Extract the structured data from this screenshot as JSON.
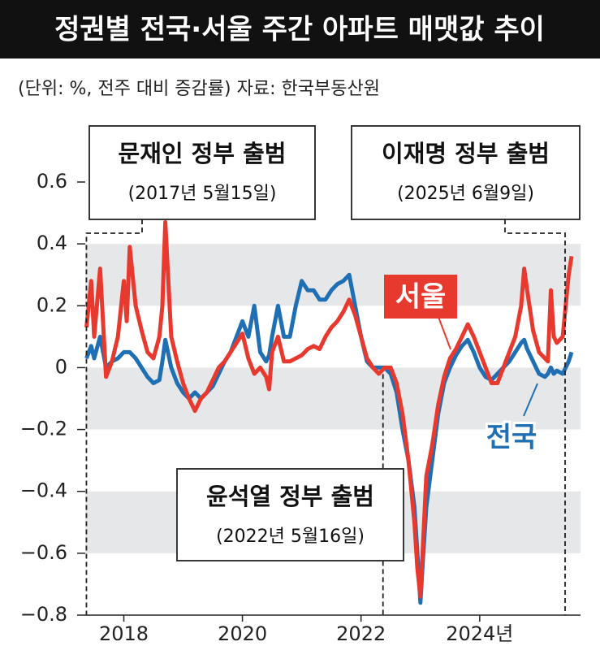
{
  "chart_data": {
    "type": "line",
    "title": "정권별 전국·서울 주간 아파트 매맷값 추이",
    "subtitle": "(단위: %, 전주 대비 증감률)  자료: 한국부동산원",
    "x": [
      2017.37,
      2017.45,
      2017.5,
      2017.6,
      2017.7,
      2017.8,
      2017.9,
      2018.0,
      2018.05,
      2018.1,
      2018.2,
      2018.3,
      2018.4,
      2018.5,
      2018.6,
      2018.65,
      2018.7,
      2018.8,
      2018.9,
      2019.0,
      2019.1,
      2019.2,
      2019.3,
      2019.4,
      2019.5,
      2019.6,
      2019.7,
      2019.8,
      2019.9,
      2020.0,
      2020.1,
      2020.2,
      2020.3,
      2020.4,
      2020.45,
      2020.5,
      2020.6,
      2020.7,
      2020.8,
      2020.9,
      2021.0,
      2021.1,
      2021.2,
      2021.3,
      2021.4,
      2021.5,
      2021.6,
      2021.7,
      2021.8,
      2021.9,
      2022.0,
      2022.1,
      2022.2,
      2022.3,
      2022.4,
      2022.5,
      2022.6,
      2022.7,
      2022.8,
      2022.9,
      2022.95,
      2023.0,
      2023.05,
      2023.1,
      2023.2,
      2023.3,
      2023.4,
      2023.5,
      2023.6,
      2023.7,
      2023.8,
      2023.9,
      2024.0,
      2024.1,
      2024.2,
      2024.3,
      2024.4,
      2024.5,
      2024.6,
      2024.7,
      2024.75,
      2024.8,
      2024.9,
      2025.0,
      2025.1,
      2025.15,
      2025.2,
      2025.25,
      2025.3,
      2025.4,
      2025.45,
      2025.5,
      2025.55
    ],
    "series": [
      {
        "name": "전국",
        "color": "#1f6fb5",
        "values": [
          0.03,
          0.07,
          0.03,
          0.1,
          0.0,
          0.02,
          0.03,
          0.05,
          0.05,
          0.05,
          0.03,
          0.0,
          -0.03,
          -0.05,
          -0.04,
          0.02,
          0.09,
          0.0,
          -0.05,
          -0.08,
          -0.1,
          -0.08,
          -0.1,
          -0.08,
          -0.06,
          -0.02,
          0.02,
          0.05,
          0.1,
          0.15,
          0.1,
          0.2,
          0.05,
          0.02,
          0.04,
          0.1,
          0.2,
          0.1,
          0.1,
          0.2,
          0.28,
          0.25,
          0.25,
          0.22,
          0.22,
          0.25,
          0.27,
          0.28,
          0.3,
          0.2,
          0.1,
          0.02,
          0.0,
          0.0,
          0.0,
          -0.02,
          -0.08,
          -0.2,
          -0.3,
          -0.45,
          -0.6,
          -0.76,
          -0.6,
          -0.45,
          -0.3,
          -0.15,
          -0.05,
          0.0,
          0.04,
          0.07,
          0.09,
          0.05,
          0.0,
          -0.03,
          -0.04,
          -0.02,
          0.0,
          0.02,
          0.05,
          0.08,
          0.09,
          0.06,
          0.02,
          -0.02,
          -0.03,
          -0.02,
          0.0,
          -0.02,
          -0.01,
          -0.02,
          0.0,
          0.02,
          0.05
        ]
      },
      {
        "name": "서울",
        "color": "#e8392f",
        "values": [
          0.13,
          0.28,
          0.1,
          0.32,
          -0.03,
          0.02,
          0.1,
          0.28,
          0.15,
          0.39,
          0.2,
          0.12,
          0.05,
          0.03,
          0.1,
          0.2,
          0.47,
          0.1,
          0.02,
          -0.05,
          -0.1,
          -0.14,
          -0.1,
          -0.08,
          -0.04,
          0.0,
          0.02,
          0.05,
          0.08,
          0.11,
          0.03,
          -0.02,
          0.0,
          -0.03,
          -0.07,
          0.05,
          0.1,
          0.02,
          0.02,
          0.03,
          0.04,
          0.06,
          0.07,
          0.06,
          0.1,
          0.13,
          0.15,
          0.18,
          0.22,
          0.17,
          0.1,
          0.03,
          0.0,
          -0.02,
          0.0,
          0.0,
          -0.05,
          -0.15,
          -0.3,
          -0.5,
          -0.65,
          -0.74,
          -0.55,
          -0.35,
          -0.25,
          -0.12,
          -0.03,
          0.03,
          0.06,
          0.1,
          0.14,
          0.1,
          0.05,
          0.0,
          -0.05,
          -0.05,
          0.0,
          0.05,
          0.1,
          0.2,
          0.32,
          0.25,
          0.12,
          0.05,
          0.03,
          0.02,
          0.25,
          0.1,
          0.08,
          0.1,
          0.2,
          0.3,
          0.36
        ]
      }
    ],
    "xlim": [
      2017.35,
      2025.7
    ],
    "xticks": [
      2018,
      2020,
      2022,
      {
        "value": 2024,
        "label": "2024년"
      }
    ],
    "ylim": [
      -0.8,
      0.6
    ],
    "yticks": [
      0.6,
      0.4,
      0.2,
      0,
      {
        "value": -0.2,
        "label": "−0.2"
      },
      {
        "value": -0.4,
        "label": "−0.4"
      },
      {
        "value": -0.6,
        "label": "−0.6"
      },
      {
        "value": -0.8,
        "label": "−0.8"
      }
    ],
    "bands": true,
    "band_color": "#e6e7e8",
    "events": [
      {
        "x": 2017.37,
        "title": "문재인 정부 출범",
        "date": "(2017년 5월15일)"
      },
      {
        "x": 2022.37,
        "title": "윤석열 정부 출범",
        "date": "(2022년 5월16일)"
      },
      {
        "x": 2025.44,
        "title": "이재명 정부 출범",
        "date": "(2025년 6월9일)"
      }
    ]
  }
}
